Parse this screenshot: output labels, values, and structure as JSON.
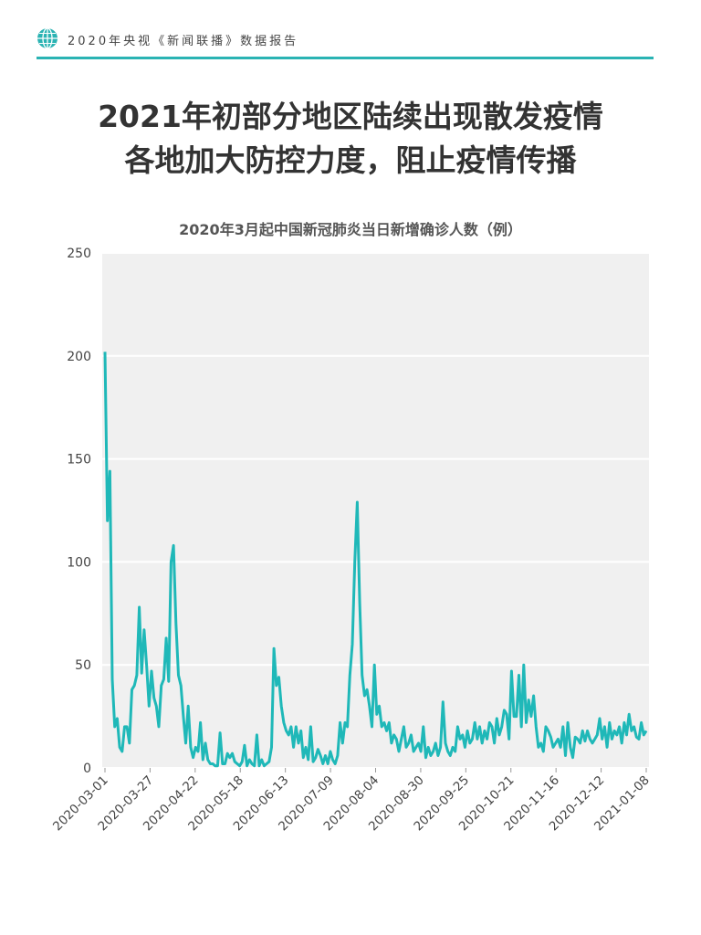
{
  "header": {
    "text": "2020年央视《新闻联播》数据报告",
    "icon": "globe-icon",
    "accent": "#2ab3b3"
  },
  "title": {
    "line1": "2021年初部分地区陆续出现散发疫情",
    "line2": "各地加大防控力度，阻止疫情传播"
  },
  "chart_data": {
    "type": "line",
    "title": "2020年3月起中国新冠肺炎当日新增确诊人数（例）",
    "xlabel": "",
    "ylabel": "",
    "ylim": [
      0,
      250
    ],
    "yticks": [
      0,
      50,
      100,
      150,
      200,
      250
    ],
    "xticks": [
      "2020-03-01",
      "2020-03-27",
      "2020-04-22",
      "2020-05-18",
      "2020-06-13",
      "2020-07-09",
      "2020-08-04",
      "2020-08-30",
      "2020-09-25",
      "2020-10-21",
      "2020-11-16",
      "2020-12-12",
      "2021-01-08"
    ],
    "grid": true,
    "background": "#f0f0f0",
    "line_color": "#1fb8b8",
    "x_start": "2020-03-01",
    "x_end": "2021-01-08",
    "series": [
      {
        "values": [
          202,
          120,
          144,
          43,
          20,
          24,
          10,
          8,
          20,
          20,
          12,
          38,
          40,
          45,
          78,
          46,
          67,
          50,
          30,
          47,
          34,
          30,
          20,
          40,
          43,
          63,
          42,
          100,
          108,
          70,
          45,
          40,
          25,
          12,
          30,
          10,
          5,
          10,
          8,
          22,
          4,
          12,
          4,
          2,
          2,
          1,
          1,
          17,
          2,
          2,
          7,
          5,
          7,
          3,
          2,
          1,
          3,
          11,
          1,
          4,
          2,
          1,
          16,
          1,
          4,
          1,
          2,
          3,
          10,
          58,
          40,
          44,
          30,
          22,
          18,
          16,
          20,
          10,
          20,
          12,
          18,
          5,
          10,
          4,
          20,
          3,
          5,
          9,
          6,
          2,
          6,
          2,
          8,
          4,
          2,
          6,
          22,
          12,
          22,
          20,
          45,
          60,
          100,
          129,
          80,
          45,
          35,
          38,
          30,
          20,
          50,
          26,
          30,
          20,
          22,
          18,
          22,
          12,
          16,
          14,
          8,
          14,
          20,
          10,
          12,
          16,
          8,
          10,
          12,
          8,
          20,
          5,
          10,
          6,
          8,
          12,
          6,
          10,
          32,
          12,
          8,
          6,
          10,
          8,
          20,
          14,
          16,
          10,
          18,
          12,
          14,
          22,
          14,
          20,
          12,
          18,
          14,
          22,
          20,
          12,
          24,
          16,
          20,
          28,
          26,
          14,
          47,
          25,
          25,
          45,
          20,
          50,
          22,
          33,
          25,
          35,
          20,
          10,
          12,
          8,
          20,
          18,
          15,
          10,
          12,
          14,
          10,
          20,
          6,
          22,
          10,
          5,
          15,
          14,
          12,
          18,
          13,
          18,
          14,
          12,
          14,
          16,
          24,
          14,
          20,
          10,
          22,
          14,
          18,
          16,
          20,
          12,
          22,
          16,
          26,
          18,
          20,
          15,
          14,
          22,
          16,
          18
        ]
      }
    ]
  }
}
